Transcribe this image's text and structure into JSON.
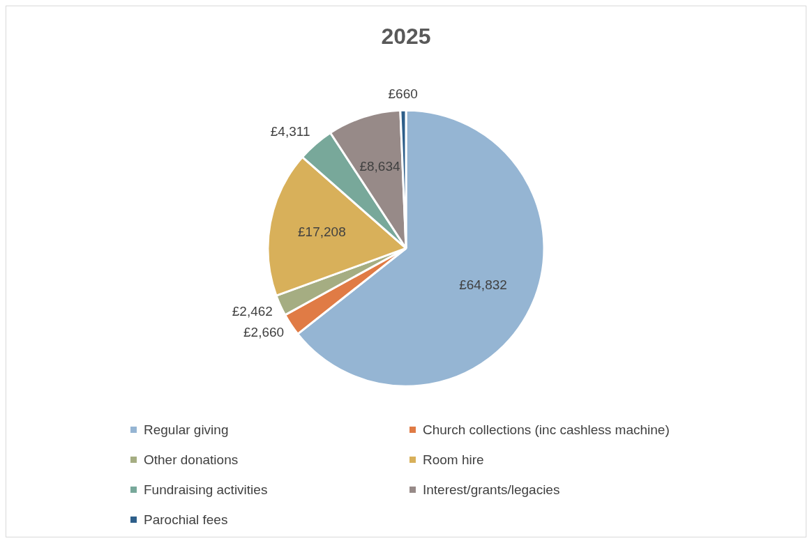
{
  "chart_data": {
    "type": "pie",
    "title": "2025",
    "categories": [
      "Regular giving",
      "Church collections (inc cashless machine)",
      "Other donations",
      "Room hire",
      "Fundraising activities",
      "Interest/grants/legacies",
      "Parochial fees"
    ],
    "values": [
      64832,
      2660,
      2462,
      17208,
      4311,
      8634,
      660
    ],
    "value_labels": [
      "£64,832",
      "£2,660",
      "£2,462",
      "£17,208",
      "£4,311",
      "£8,634",
      "£660"
    ],
    "colors": [
      "#95b5d3",
      "#e07b45",
      "#a5ad82",
      "#d8b05a",
      "#78a89a",
      "#978a88",
      "#2e5f8a"
    ],
    "legend": "bottom"
  }
}
